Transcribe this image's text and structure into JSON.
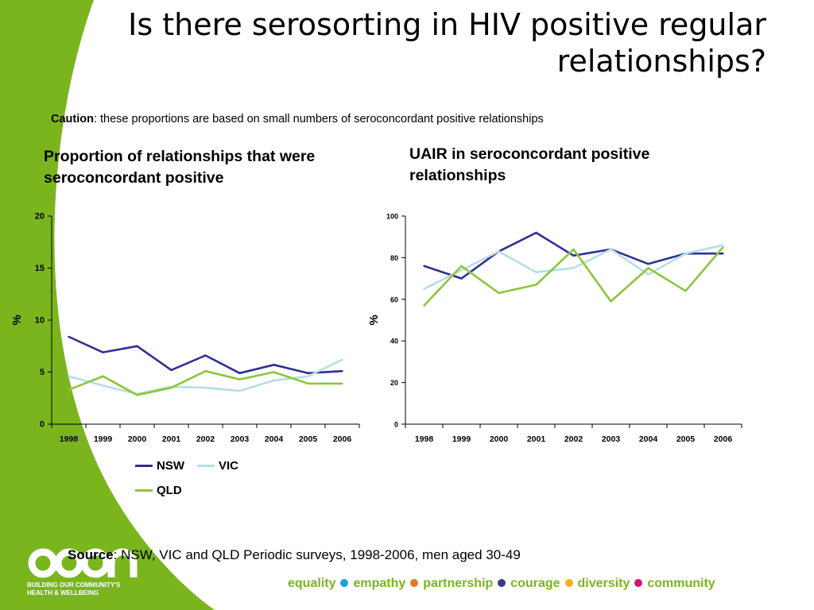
{
  "slide": {
    "title": "Is there serosorting in HIV positive regular relationships?",
    "caution_label": "Caution",
    "caution_text": ": these proportions are based on small numbers of seroconcordant positive relationships",
    "source_label": "Source",
    "source_text": ": NSW, VIC and QLD Periodic surveys, 1998-2006, men aged 30-49",
    "org": {
      "logo_text": "acon",
      "tagline_line1": "BUILDING OUR COMMUNITY'S",
      "tagline_line2": "HEALTH & WELLBEING"
    },
    "values": [
      {
        "label": "equality",
        "dot_color": "#1aa3dc"
      },
      {
        "label": "empathy",
        "dot_color": "#e8762b"
      },
      {
        "label": "partnership",
        "dot_color": "#3c3a8e"
      },
      {
        "label": "courage",
        "dot_color": "#f2b11c"
      },
      {
        "label": "diversity",
        "dot_color": "#d6136f"
      },
      {
        "label": "community",
        "dot_color": null
      }
    ],
    "colors": {
      "green": "#7ab51d",
      "nsw": "#2e3192",
      "vic": "#b7dde8",
      "qld": "#8cc63f"
    }
  },
  "chart_data": [
    {
      "type": "line",
      "title": "Proportion of relationships that were seroconcordant positive",
      "xlabel": "",
      "ylabel": "%",
      "ylim": [
        0,
        20
      ],
      "yticks": [
        0,
        5,
        10,
        15,
        20
      ],
      "x": [
        "1998",
        "1999",
        "2000",
        "2001",
        "2002",
        "2003",
        "2004",
        "2005",
        "2006"
      ],
      "series": [
        {
          "name": "NSW",
          "color": "#2e3192",
          "values": [
            8.4,
            6.9,
            7.5,
            5.2,
            6.6,
            4.9,
            5.7,
            4.9,
            5.1
          ]
        },
        {
          "name": "VIC",
          "color": "#b7dde8",
          "values": [
            4.6,
            3.7,
            2.9,
            3.6,
            3.5,
            3.2,
            4.2,
            4.6,
            6.2
          ]
        },
        {
          "name": "QLD",
          "color": "#8cc63f",
          "values": [
            3.3,
            4.6,
            2.8,
            3.5,
            5.1,
            4.3,
            5.0,
            3.9,
            3.9
          ]
        }
      ],
      "legend": "bottom"
    },
    {
      "type": "line",
      "title": "UAIR in seroconcordant positive relationships",
      "xlabel": "",
      "ylabel": "%",
      "ylim": [
        0,
        100
      ],
      "yticks": [
        0,
        20,
        40,
        60,
        80,
        100
      ],
      "x": [
        "1998",
        "1999",
        "2000",
        "2001",
        "2002",
        "2003",
        "2004",
        "2005",
        "2006"
      ],
      "series": [
        {
          "name": "NSW",
          "color": "#2e3192",
          "values": [
            76,
            70,
            83,
            92,
            81,
            84,
            77,
            82,
            82
          ]
        },
        {
          "name": "VIC",
          "color": "#b7dde8",
          "values": [
            65,
            74,
            83,
            73,
            75,
            84,
            72,
            82,
            86
          ]
        },
        {
          "name": "QLD",
          "color": "#8cc63f",
          "values": [
            57,
            76,
            63,
            67,
            84,
            59,
            75,
            64,
            85
          ]
        }
      ]
    }
  ]
}
